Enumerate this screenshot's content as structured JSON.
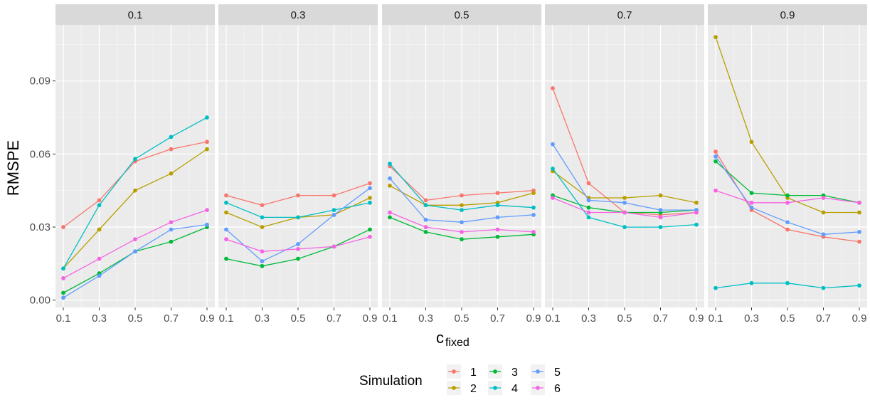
{
  "chart_data": {
    "type": "line",
    "facet_variable": "c",
    "panels": [
      "0.1",
      "0.3",
      "0.5",
      "0.7",
      "0.9"
    ],
    "x": [
      0.1,
      0.3,
      0.5,
      0.7,
      0.9
    ],
    "x_tick_labels": [
      "0.1",
      "0.3",
      "0.5",
      "0.7",
      "0.9"
    ],
    "y_ticks": [
      0.0,
      0.03,
      0.06,
      0.09
    ],
    "y_tick_labels": [
      "0.00",
      "0.03",
      "0.06",
      "0.09"
    ],
    "ylim": [
      -0.003,
      0.113
    ],
    "xlabel_main": "c",
    "xlabel_sub": "fixed",
    "ylabel": "RMSPE",
    "legend_title": "Simulation",
    "legend_position": "bottom",
    "grid": true,
    "series": [
      {
        "name": "1",
        "color": "#F8766D",
        "values": [
          [
            0.03,
            0.041,
            0.057,
            0.062,
            0.065
          ],
          [
            0.043,
            0.039,
            0.043,
            0.043,
            0.048
          ],
          [
            0.055,
            0.041,
            0.043,
            0.044,
            0.045
          ],
          [
            0.087,
            0.048,
            0.036,
            0.035,
            0.036
          ],
          [
            0.061,
            0.037,
            0.029,
            0.026,
            0.024
          ]
        ]
      },
      {
        "name": "2",
        "color": "#B79F00",
        "values": [
          [
            0.013,
            0.029,
            0.045,
            0.052,
            0.062
          ],
          [
            0.036,
            0.03,
            0.034,
            0.035,
            0.042
          ],
          [
            0.047,
            0.039,
            0.039,
            0.04,
            0.044
          ],
          [
            0.053,
            0.042,
            0.042,
            0.043,
            0.04
          ],
          [
            0.108,
            0.065,
            0.042,
            0.036,
            0.036
          ]
        ]
      },
      {
        "name": "3",
        "color": "#00BA38",
        "values": [
          [
            0.003,
            0.011,
            0.02,
            0.024,
            0.03
          ],
          [
            0.017,
            0.014,
            0.017,
            0.022,
            0.029
          ],
          [
            0.034,
            0.028,
            0.025,
            0.026,
            0.027
          ],
          [
            0.043,
            0.038,
            0.036,
            0.036,
            0.037
          ],
          [
            0.057,
            0.044,
            0.043,
            0.043,
            0.04
          ]
        ]
      },
      {
        "name": "4",
        "color": "#00BFC4",
        "values": [
          [
            0.013,
            0.039,
            0.058,
            0.067,
            0.075
          ],
          [
            0.04,
            0.034,
            0.034,
            0.037,
            0.04
          ],
          [
            0.056,
            0.039,
            0.037,
            0.039,
            0.038
          ],
          [
            0.054,
            0.034,
            0.03,
            0.03,
            0.031
          ],
          [
            0.005,
            0.007,
            0.007,
            0.005,
            0.006
          ]
        ]
      },
      {
        "name": "5",
        "color": "#619CFF",
        "values": [
          [
            0.001,
            0.01,
            0.02,
            0.029,
            0.031
          ],
          [
            0.029,
            0.016,
            0.023,
            0.035,
            0.046
          ],
          [
            0.05,
            0.033,
            0.032,
            0.034,
            0.035
          ],
          [
            0.064,
            0.041,
            0.04,
            0.037,
            0.037
          ],
          [
            0.059,
            0.038,
            0.032,
            0.027,
            0.028
          ]
        ]
      },
      {
        "name": "6",
        "color": "#F564E3",
        "values": [
          [
            0.009,
            0.017,
            0.025,
            0.032,
            0.037
          ],
          [
            0.025,
            0.02,
            0.021,
            0.022,
            0.026
          ],
          [
            0.036,
            0.03,
            0.028,
            0.029,
            0.028
          ],
          [
            0.042,
            0.036,
            0.036,
            0.034,
            0.036
          ],
          [
            0.045,
            0.04,
            0.04,
            0.042,
            0.04
          ]
        ]
      }
    ]
  }
}
